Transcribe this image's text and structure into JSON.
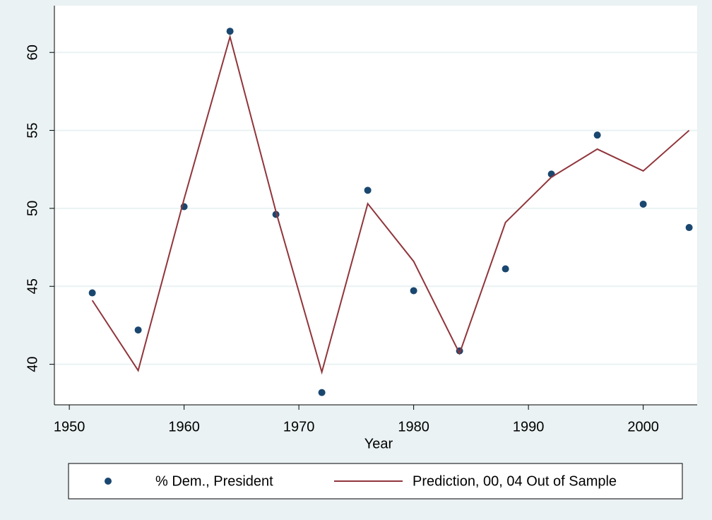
{
  "chart_data": {
    "type": "line",
    "x_label": "Year",
    "x": [
      1952,
      1956,
      1960,
      1964,
      1968,
      1972,
      1976,
      1980,
      1984,
      1988,
      1992,
      1996,
      2000,
      2004
    ],
    "series": [
      {
        "name": "% Dem., President",
        "type": "scatter",
        "color": "#1a476f",
        "values": [
          44.58,
          42.2,
          50.11,
          61.36,
          49.61,
          38.19,
          51.16,
          44.72,
          40.86,
          46.12,
          52.2,
          54.7,
          50.27,
          48.77
        ]
      },
      {
        "name": "Prediction, 00, 04 Out of Sample",
        "type": "line",
        "color": "#90353b",
        "values": [
          44.1,
          39.6,
          50.6,
          61.0,
          49.8,
          39.5,
          50.3,
          46.6,
          40.7,
          49.1,
          52.0,
          53.8,
          52.4,
          55.0
        ]
      }
    ],
    "xlim": [
      1948.7,
      2004.7
    ],
    "xticks": [
      1950,
      1960,
      1970,
      1980,
      1990,
      2000
    ],
    "ylim": [
      37.4,
      63.0
    ],
    "yticks": [
      40,
      45,
      50,
      55,
      60
    ],
    "grid": true
  }
}
